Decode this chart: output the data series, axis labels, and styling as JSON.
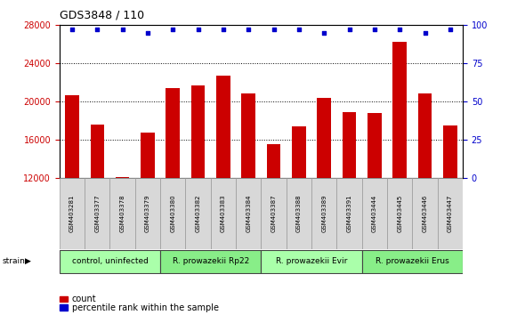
{
  "title": "GDS3848 / 110",
  "samples": [
    "GSM403281",
    "GSM403377",
    "GSM403378",
    "GSM403379",
    "GSM403380",
    "GSM403382",
    "GSM403383",
    "GSM403384",
    "GSM403387",
    "GSM403388",
    "GSM403389",
    "GSM403391",
    "GSM403444",
    "GSM403445",
    "GSM403446",
    "GSM403447"
  ],
  "bar_values": [
    20700,
    17600,
    12100,
    16800,
    21400,
    21700,
    22700,
    20900,
    15500,
    17400,
    20400,
    18900,
    18800,
    26300,
    20900,
    17500
  ],
  "dot_values": [
    97,
    97,
    97,
    95,
    97,
    97,
    97,
    97,
    97,
    97,
    95,
    97,
    97,
    97,
    95,
    97
  ],
  "bar_color": "#cc0000",
  "dot_color": "#0000cc",
  "ylim_left": [
    12000,
    28000
  ],
  "ylim_right": [
    0,
    100
  ],
  "yticks_left": [
    12000,
    16000,
    20000,
    24000,
    28000
  ],
  "yticks_right": [
    0,
    25,
    50,
    75,
    100
  ],
  "grid_lines": [
    16000,
    20000,
    24000
  ],
  "groups": [
    {
      "label": "control, uninfected",
      "start": 0,
      "end": 3,
      "color": "#aaffaa"
    },
    {
      "label": "R. prowazekii Rp22",
      "start": 4,
      "end": 7,
      "color": "#88ee88"
    },
    {
      "label": "R. prowazekii Evir",
      "start": 8,
      "end": 11,
      "color": "#aaffaa"
    },
    {
      "label": "R. prowazekii Erus",
      "start": 12,
      "end": 15,
      "color": "#88ee88"
    }
  ],
  "strain_label": "strain",
  "legend_bar_label": "count",
  "legend_dot_label": "percentile rank within the sample",
  "background_color": "#ffffff",
  "plot_bg_color": "#ffffff",
  "tick_label_color_left": "#cc0000",
  "tick_label_color_right": "#0000cc",
  "title_fontsize": 9,
  "tick_fontsize": 7,
  "sample_fontsize": 5,
  "group_fontsize": 6.5,
  "legend_fontsize": 7
}
